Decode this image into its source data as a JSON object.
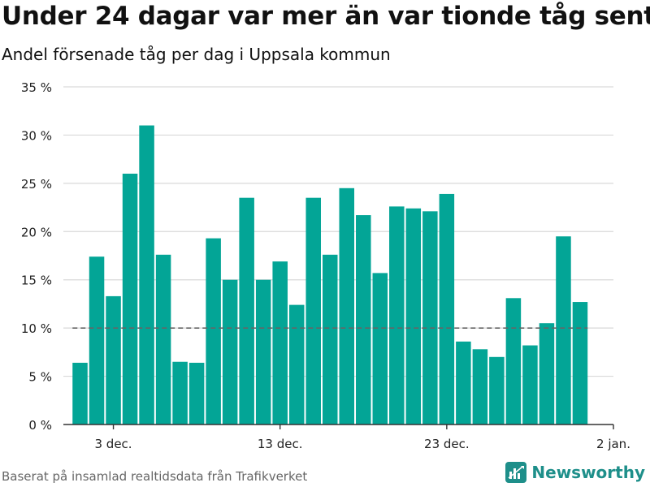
{
  "header": {
    "title": "Under 24 dagar var mer än var tionde tåg sent",
    "subtitle": "Andel försenade tåg per dag i Uppsala kommun"
  },
  "footer": {
    "source": "Baserat på insamlad realtidsdata från Trafikverket",
    "brand_name": "Newsworthy",
    "brand_icon": "newsworthy-logo-icon"
  },
  "colors": {
    "bar": "#03a596",
    "grid": "#d9d9d9",
    "axis": "#333333",
    "reference_line": "#666666",
    "brand": "#1e8f8a"
  },
  "chart_data": {
    "type": "bar",
    "title": "Under 24 dagar var mer än var tionde tåg sent",
    "subtitle": "Andel försenade tåg per dag i Uppsala kommun",
    "x": [
      "2023-12-01",
      "2023-12-02",
      "2023-12-03",
      "2023-12-04",
      "2023-12-05",
      "2023-12-06",
      "2023-12-07",
      "2023-12-08",
      "2023-12-09",
      "2023-12-10",
      "2023-12-11",
      "2023-12-12",
      "2023-12-13",
      "2023-12-14",
      "2023-12-15",
      "2023-12-16",
      "2023-12-17",
      "2023-12-18",
      "2023-12-19",
      "2023-12-20",
      "2023-12-21",
      "2023-12-22",
      "2023-12-23",
      "2023-12-24",
      "2023-12-25",
      "2023-12-26",
      "2023-12-27",
      "2023-12-28",
      "2023-12-29",
      "2023-12-30",
      "2023-12-31"
    ],
    "values": [
      6.4,
      17.4,
      13.3,
      26.0,
      31.0,
      17.6,
      6.5,
      6.4,
      19.3,
      15.0,
      23.5,
      15.0,
      16.9,
      12.4,
      23.5,
      17.6,
      24.5,
      21.7,
      15.7,
      22.6,
      22.4,
      22.1,
      23.9,
      8.6,
      7.8,
      7.0,
      13.1,
      8.2,
      10.5,
      19.5,
      12.7
    ],
    "value_unit": "%",
    "ylim": [
      0,
      35
    ],
    "y_ticks": [
      0,
      5,
      10,
      15,
      20,
      25,
      30,
      35
    ],
    "y_tick_labels": [
      "0 %",
      "5 %",
      "10 %",
      "15 %",
      "20 %",
      "25 %",
      "30 %",
      "35 %"
    ],
    "x_range": [
      "2023-11-30",
      "2024-01-02"
    ],
    "x_ticks": [
      "2023-12-03",
      "2023-12-13",
      "2023-12-23",
      "2024-01-02"
    ],
    "x_tick_labels": [
      "3 dec.",
      "13 dec.",
      "23 dec.",
      "2 jan."
    ],
    "reference_line": {
      "y": 10,
      "style": "dashed"
    },
    "xlabel": "",
    "ylabel": "",
    "grid": true,
    "legend": "none"
  }
}
